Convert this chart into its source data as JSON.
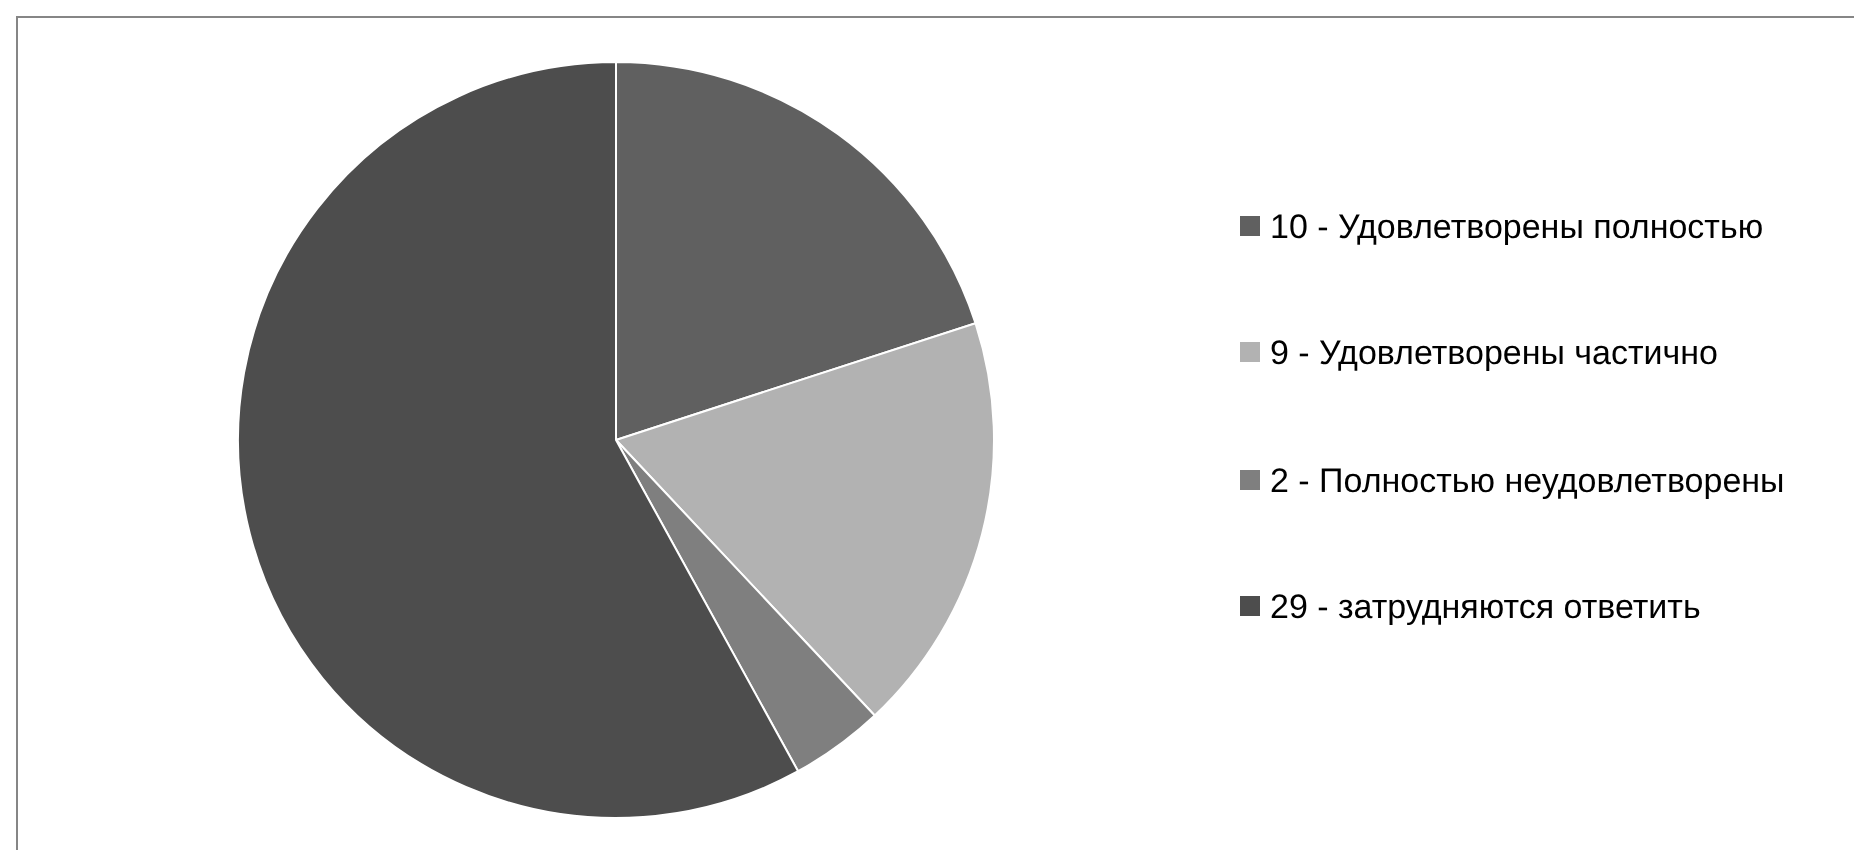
{
  "chart_data": {
    "type": "pie",
    "categories": [
      "10 - Удовлетворены полностью",
      "9 - Удовлетворены частично",
      "2 - Полностью неудовлетворены",
      "29 - затрудняются ответить"
    ],
    "values": [
      10,
      9,
      2,
      29
    ],
    "colors": [
      "#606060",
      "#b2b2b2",
      "#7f7f7f",
      "#4d4d4d"
    ],
    "legend": "right"
  }
}
